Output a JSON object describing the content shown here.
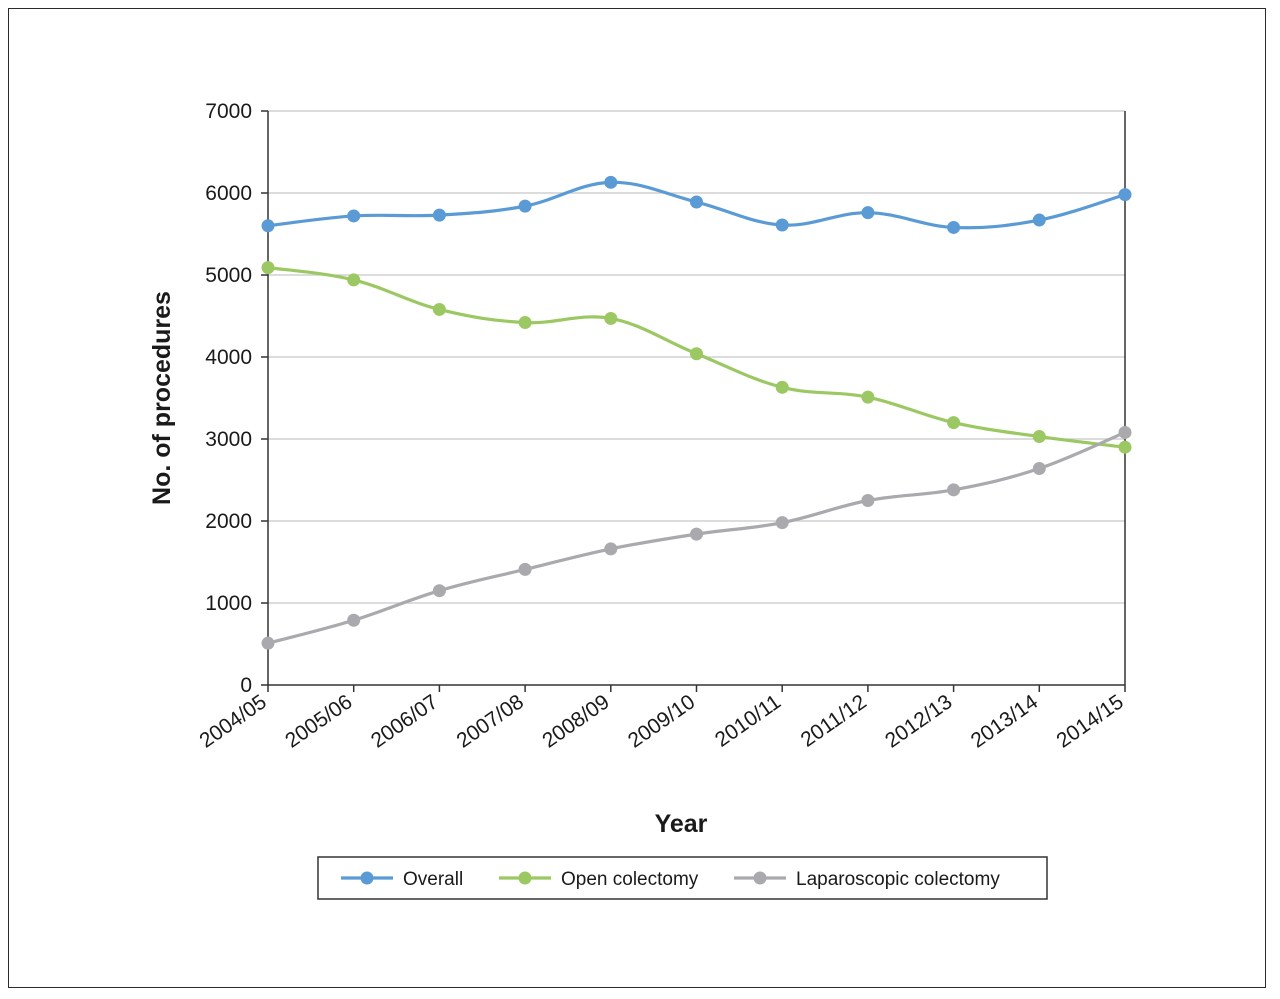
{
  "chart_data": {
    "type": "line",
    "title": "",
    "xlabel": "Year",
    "ylabel": "No. of procedures",
    "categories": [
      "2004/05",
      "2005/06",
      "2006/07",
      "2007/08",
      "2008/09",
      "2009/10",
      "2010/11",
      "2011/12",
      "2012/13",
      "2013/14",
      "2014/15"
    ],
    "ylim": [
      0,
      7000
    ],
    "yticks": [
      0,
      1000,
      2000,
      3000,
      4000,
      5000,
      6000,
      7000
    ],
    "grid": "horizontal",
    "legend_position": "bottom",
    "smooth": true,
    "series": [
      {
        "name": "Overall",
        "color": "#5b9bd5",
        "values": [
          5600,
          5720,
          5730,
          5840,
          6130,
          5890,
          5610,
          5760,
          5580,
          5670,
          5980
        ]
      },
      {
        "name": "Open colectomy",
        "color": "#9bc862",
        "values": [
          5090,
          4940,
          4580,
          4420,
          4470,
          4040,
          3630,
          3510,
          3200,
          3030,
          2900
        ]
      },
      {
        "name": "Laparoscopic colectomy",
        "color": "#a9a9ae",
        "values": [
          510,
          790,
          1150,
          1410,
          1660,
          1840,
          1980,
          2250,
          2380,
          2640,
          3080
        ]
      }
    ]
  }
}
